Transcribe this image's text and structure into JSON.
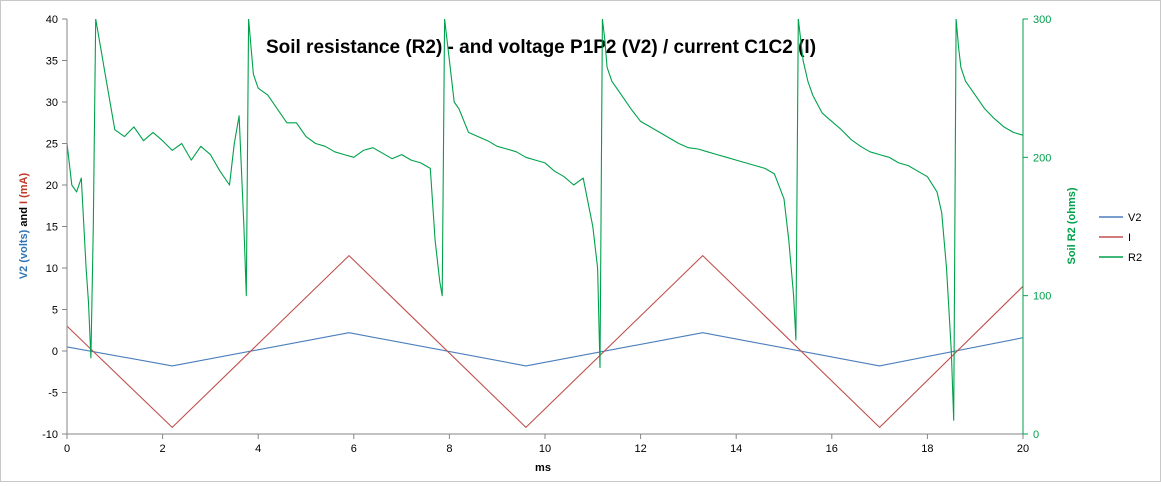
{
  "chart_data": {
    "type": "line",
    "title": "Soil resistance (R2) - and voltage P1P2 (V2) / current C1C2 (I)",
    "xlabel": "ms",
    "ylabel_left_parts": [
      {
        "text": "V2 (volts)",
        "color": "#2e75b6"
      },
      {
        "text": " and ",
        "color": "#000000"
      },
      {
        "text": "I (mA)",
        "color": "#c0392b"
      }
    ],
    "ylabel_right": "Soil R2 (ohms)",
    "xlim": [
      0,
      20
    ],
    "ylim_left": [
      -10,
      40
    ],
    "ylim_right": [
      0,
      300
    ],
    "x_ticks": [
      "0",
      "2",
      "4",
      "6",
      "8",
      "10",
      "12",
      "14",
      "16",
      "18",
      "20"
    ],
    "y_left_ticks": [
      "-10",
      "-5",
      "0",
      "5",
      "10",
      "15",
      "20",
      "25",
      "30",
      "35",
      "40"
    ],
    "y_right_ticks": [
      "0",
      "100",
      "200",
      "300"
    ],
    "grid": false,
    "legend_position": "right",
    "series": [
      {
        "name": "V2",
        "axis": "left",
        "color": "#4a7ebb",
        "x": [
          0,
          2.2,
          5.9,
          9.6,
          13.3,
          17.0,
          20.0
        ],
        "y": [
          0.5,
          -1.8,
          2.2,
          -1.8,
          2.2,
          -1.8,
          1.6
        ]
      },
      {
        "name": "I",
        "axis": "left",
        "color": "#c0504d",
        "x": [
          0,
          2.2,
          5.9,
          9.6,
          13.3,
          17.0,
          20.0
        ],
        "y": [
          3.0,
          -9.2,
          11.5,
          -9.2,
          11.5,
          -9.2,
          7.8
        ]
      },
      {
        "name": "R2",
        "axis": "right",
        "color": "#00a14b",
        "x": [
          0,
          0.1,
          0.2,
          0.3,
          0.4,
          0.45,
          0.5,
          0.55,
          0.6,
          0.7,
          0.8,
          1.0,
          1.2,
          1.4,
          1.6,
          1.8,
          2.0,
          2.2,
          2.4,
          2.6,
          2.8,
          3.0,
          3.2,
          3.4,
          3.5,
          3.6,
          3.7,
          3.75,
          3.8,
          3.85,
          3.9,
          4.0,
          4.2,
          4.4,
          4.6,
          4.8,
          5.0,
          5.2,
          5.4,
          5.6,
          5.8,
          6.0,
          6.2,
          6.4,
          6.6,
          6.8,
          7.0,
          7.2,
          7.4,
          7.6,
          7.7,
          7.8,
          7.85,
          7.9,
          7.95,
          8.0,
          8.1,
          8.2,
          8.4,
          8.6,
          8.8,
          9.0,
          9.2,
          9.4,
          9.6,
          9.8,
          10.0,
          10.2,
          10.4,
          10.6,
          10.8,
          11.0,
          11.1,
          11.15,
          11.2,
          11.25,
          11.3,
          11.4,
          11.6,
          11.8,
          12.0,
          12.2,
          12.4,
          12.6,
          12.8,
          13.0,
          13.2,
          13.4,
          13.6,
          13.8,
          14.0,
          14.2,
          14.4,
          14.6,
          14.8,
          15.0,
          15.1,
          15.2,
          15.25,
          15.3,
          15.35,
          15.4,
          15.5,
          15.6,
          15.8,
          16.0,
          16.2,
          16.4,
          16.6,
          16.8,
          17.0,
          17.2,
          17.4,
          17.6,
          17.8,
          18.0,
          18.2,
          18.3,
          18.4,
          18.5,
          18.55,
          18.6,
          18.65,
          18.7,
          18.8,
          19.0,
          19.2,
          19.4,
          19.6,
          19.8,
          20.0
        ],
        "y": [
          210,
          180,
          175,
          185,
          120,
          95,
          55,
          150,
          300,
          280,
          260,
          220,
          215,
          222,
          212,
          218,
          212,
          205,
          210,
          198,
          208,
          202,
          190,
          180,
          210,
          230,
          150,
          100,
          300,
          280,
          260,
          250,
          245,
          235,
          225,
          225,
          215,
          210,
          208,
          204,
          202,
          200,
          205,
          207,
          203,
          199,
          202,
          198,
          196,
          192,
          140,
          110,
          100,
          300,
          285,
          270,
          240,
          235,
          218,
          215,
          212,
          208,
          206,
          204,
          200,
          198,
          196,
          190,
          186,
          180,
          185,
          150,
          120,
          48,
          300,
          285,
          265,
          255,
          245,
          235,
          226,
          222,
          218,
          214,
          210,
          207,
          206,
          204,
          202,
          200,
          198,
          196,
          194,
          192,
          188,
          170,
          140,
          100,
          68,
          300,
          285,
          270,
          255,
          245,
          232,
          226,
          220,
          213,
          208,
          204,
          202,
          200,
          196,
          194,
          190,
          186,
          175,
          160,
          120,
          60,
          10,
          300,
          280,
          265,
          255,
          245,
          235,
          228,
          222,
          218,
          216
        ]
      }
    ]
  }
}
